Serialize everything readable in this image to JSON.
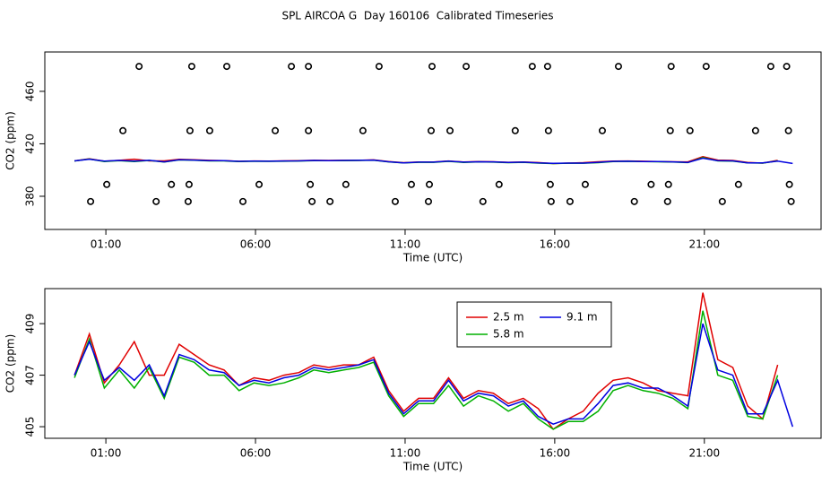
{
  "chart_data": [
    {
      "type": "line",
      "title": "SPL AIRCOA G  Day 160106  Calibrated Timeseries",
      "x_label": "Time (UTC)",
      "y_label": "CO2 (ppm)",
      "x": [
        -0.05,
        0.45,
        0.95,
        1.45,
        1.95,
        2.45,
        2.95,
        3.45,
        3.95,
        4.45,
        4.95,
        5.45,
        5.95,
        6.45,
        6.95,
        7.45,
        7.95,
        8.45,
        8.95,
        9.45,
        9.95,
        10.45,
        10.95,
        11.45,
        11.95,
        12.45,
        12.95,
        13.45,
        13.95,
        14.45,
        14.95,
        15.45,
        15.95,
        16.45,
        16.95,
        17.45,
        17.95,
        18.45,
        18.95,
        19.45,
        19.95,
        20.45,
        20.95,
        21.45,
        21.95,
        22.45,
        22.95,
        23.45,
        23.95
      ],
      "series": [
        {
          "color": "#e00000",
          "values": [
            407.0,
            408.6,
            406.7,
            407.4,
            408.3,
            407.0,
            407.0,
            408.2,
            407.8,
            407.4,
            407.2,
            406.6,
            406.9,
            406.8,
            407.0,
            407.1,
            407.4,
            407.3,
            407.4,
            407.4,
            407.7,
            406.4,
            405.6,
            406.1,
            406.1,
            406.9,
            406.1,
            406.4,
            406.3,
            405.9,
            406.1,
            405.7,
            404.9,
            405.3,
            405.6,
            406.3,
            406.8,
            406.9,
            406.7,
            406.4,
            406.3,
            406.2,
            410.2,
            407.6,
            407.3,
            405.8,
            405.3,
            407.4,
            null
          ]
        },
        {
          "color": "#00b000",
          "values": [
            406.9,
            408.4,
            406.5,
            407.2,
            406.5,
            407.3,
            406.1,
            407.7,
            407.5,
            407.0,
            407.0,
            406.4,
            406.7,
            406.6,
            406.7,
            406.9,
            407.2,
            407.1,
            407.2,
            407.3,
            407.5,
            406.2,
            405.4,
            405.9,
            405.9,
            406.6,
            405.8,
            406.2,
            406.0,
            405.6,
            405.9,
            405.3,
            404.9,
            405.2,
            405.2,
            405.6,
            406.4,
            406.6,
            406.4,
            406.3,
            406.1,
            405.7,
            409.5,
            407.0,
            406.8,
            405.4,
            405.3,
            407.0,
            null
          ]
        },
        {
          "color": "#0000e0",
          "values": [
            407.0,
            408.3,
            406.8,
            407.3,
            406.8,
            407.4,
            406.2,
            407.8,
            407.6,
            407.2,
            407.1,
            406.6,
            406.8,
            406.7,
            406.9,
            407.0,
            407.3,
            407.2,
            407.3,
            407.4,
            407.6,
            406.3,
            405.5,
            406.0,
            406.0,
            406.8,
            406.0,
            406.3,
            406.2,
            405.8,
            406.0,
            405.4,
            405.1,
            405.3,
            405.3,
            405.9,
            406.6,
            406.7,
            406.5,
            406.5,
            406.2,
            405.8,
            409.0,
            407.2,
            407.0,
            405.5,
            405.5,
            406.8,
            405.0
          ]
        }
      ],
      "markers": {
        "x": [
          2.11,
          3.87,
          5.04,
          7.2,
          7.77,
          10.13,
          11.9,
          13.04,
          15.25,
          15.76,
          18.13,
          19.89,
          21.06,
          23.22,
          23.75,
          1.57,
          3.81,
          4.47,
          6.66,
          7.77,
          9.59,
          11.87,
          12.5,
          14.68,
          15.79,
          17.59,
          19.86,
          20.52,
          22.71,
          23.81,
          1.03,
          3.19,
          3.78,
          6.12,
          7.83,
          9.02,
          11.21,
          11.81,
          14.14,
          15.85,
          17.02,
          19.22,
          19.8,
          22.14,
          23.84,
          0.49,
          2.68,
          3.75,
          5.58,
          7.89,
          8.49,
          10.67,
          11.78,
          13.6,
          15.88,
          16.51,
          18.66,
          19.77,
          21.6,
          23.9
        ],
        "y": [
          479,
          479,
          479,
          479,
          479,
          479,
          479,
          479,
          479,
          479,
          479,
          479,
          479,
          479,
          479,
          430,
          430,
          430,
          430,
          430,
          430,
          430,
          430,
          430,
          430,
          430,
          430,
          430,
          430,
          430,
          389,
          389,
          389,
          389,
          389,
          389,
          389,
          389,
          389,
          389,
          389,
          389,
          389,
          389,
          389,
          376,
          376,
          376,
          376,
          376,
          376,
          376,
          376,
          376,
          376,
          376,
          376,
          376,
          376,
          376
        ]
      },
      "xlim": [
        -1.04,
        24.9
      ],
      "xticks": [
        {
          "value": 1,
          "label": "01:00"
        },
        {
          "value": 6,
          "label": "06:00"
        },
        {
          "value": 11,
          "label": "11:00"
        },
        {
          "value": 16,
          "label": "16:00"
        },
        {
          "value": 21,
          "label": "21:00"
        }
      ],
      "ylim": [
        354.7,
        490
      ],
      "yticks": [
        380,
        420,
        460
      ]
    },
    {
      "type": "line",
      "x_label": "Time (UTC)",
      "y_label": "CO2 (ppm)",
      "x": [
        -0.05,
        0.45,
        0.95,
        1.45,
        1.95,
        2.45,
        2.95,
        3.45,
        3.95,
        4.45,
        4.95,
        5.45,
        5.95,
        6.45,
        6.95,
        7.45,
        7.95,
        8.45,
        8.95,
        9.45,
        9.95,
        10.45,
        10.95,
        11.45,
        11.95,
        12.45,
        12.95,
        13.45,
        13.95,
        14.45,
        14.95,
        15.45,
        15.95,
        16.45,
        16.95,
        17.45,
        17.95,
        18.45,
        18.95,
        19.45,
        19.95,
        20.45,
        20.95,
        21.45,
        21.95,
        22.45,
        22.95,
        23.45,
        23.95
      ],
      "series": [
        {
          "name": "2.5 m",
          "color": "#e00000",
          "values": [
            407.0,
            408.6,
            406.7,
            407.4,
            408.3,
            407.0,
            407.0,
            408.2,
            407.8,
            407.4,
            407.2,
            406.6,
            406.9,
            406.8,
            407.0,
            407.1,
            407.4,
            407.3,
            407.4,
            407.4,
            407.7,
            406.4,
            405.6,
            406.1,
            406.1,
            406.9,
            406.1,
            406.4,
            406.3,
            405.9,
            406.1,
            405.7,
            404.9,
            405.3,
            405.6,
            406.3,
            406.8,
            406.9,
            406.7,
            406.4,
            406.3,
            406.2,
            410.2,
            407.6,
            407.3,
            405.8,
            405.3,
            407.4,
            null
          ]
        },
        {
          "name": "5.8 m",
          "color": "#00b000",
          "values": [
            406.9,
            408.4,
            406.5,
            407.2,
            406.5,
            407.3,
            406.1,
            407.7,
            407.5,
            407.0,
            407.0,
            406.4,
            406.7,
            406.6,
            406.7,
            406.9,
            407.2,
            407.1,
            407.2,
            407.3,
            407.5,
            406.2,
            405.4,
            405.9,
            405.9,
            406.6,
            405.8,
            406.2,
            406.0,
            405.6,
            405.9,
            405.3,
            404.9,
            405.2,
            405.2,
            405.6,
            406.4,
            406.6,
            406.4,
            406.3,
            406.1,
            405.7,
            409.5,
            407.0,
            406.8,
            405.4,
            405.3,
            407.0,
            null
          ]
        },
        {
          "name": "9.1 m",
          "color": "#0000e0",
          "values": [
            407.0,
            408.3,
            406.8,
            407.3,
            406.8,
            407.4,
            406.2,
            407.8,
            407.6,
            407.2,
            407.1,
            406.6,
            406.8,
            406.7,
            406.9,
            407.0,
            407.3,
            407.2,
            407.3,
            407.4,
            407.6,
            406.3,
            405.5,
            406.0,
            406.0,
            406.8,
            406.0,
            406.3,
            406.2,
            405.8,
            406.0,
            405.4,
            405.1,
            405.3,
            405.3,
            405.9,
            406.6,
            406.7,
            406.5,
            406.5,
            406.2,
            405.8,
            409.0,
            407.2,
            407.0,
            405.5,
            405.5,
            406.8,
            405.0
          ]
        }
      ],
      "xlim": [
        -1.04,
        24.9
      ],
      "xticks": [
        {
          "value": 1,
          "label": "01:00"
        },
        {
          "value": 6,
          "label": "06:00"
        },
        {
          "value": 11,
          "label": "11:00"
        },
        {
          "value": 16,
          "label": "16:00"
        },
        {
          "value": 21,
          "label": "21:00"
        }
      ],
      "ylim": [
        404.55,
        410.36
      ],
      "yticks": [
        405,
        407,
        409
      ]
    }
  ]
}
